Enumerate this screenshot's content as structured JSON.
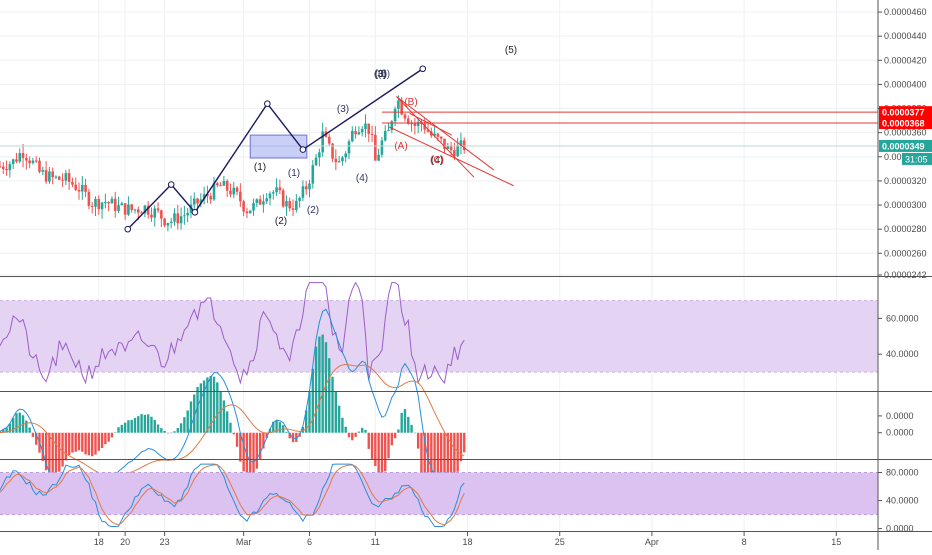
{
  "chart_data": {
    "type": "candlestick-with-indicators",
    "colors": {
      "up": "#26a69a",
      "down": "#ef5350",
      "wave": "#1a1a5e",
      "wave_label": "#333366",
      "correction_label": "#d93434",
      "trend_red": "#e53935",
      "rsi_band": "#e4d3f2",
      "rsi_line": "#9c5fc8",
      "stoch_band": "#dcc2f0",
      "macd_fast": "#2a8fd8",
      "macd_slow": "#e07a47",
      "zone": "#9fa8f0",
      "price_badge_red": "#ff0000",
      "price_badge_teal": "#26a69a",
      "grid": "#eef0f3",
      "axis_text": "#4a4a4a"
    },
    "main": {
      "y_range": [
        2.42e-05,
        4.7e-05
      ],
      "y_ticks": [
        "0.0000460",
        "0.0000440",
        "0.0000420",
        "0.0000400",
        "0.0000380",
        "0.0000360",
        "0.0000340",
        "0.0000320",
        "0.0000300",
        "0.0000280",
        "0.0000260",
        "0.0000242"
      ],
      "y_values": [
        4.6e-05,
        4.4e-05,
        4.2e-05,
        4e-05,
        3.8e-05,
        3.6e-05,
        3.4e-05,
        3.2e-05,
        3e-05,
        2.8e-05,
        2.6e-05,
        2.42e-05
      ],
      "wave_points": [
        {
          "label": "",
          "d": 20.2,
          "p": 2.8e-05
        },
        {
          "label": "(1)",
          "d": 23.5,
          "p": 3.17e-05
        },
        {
          "label": "(2)",
          "d": 25.3,
          "p": 2.94e-05
        },
        {
          "label": "(3)",
          "d": 30.8,
          "p": 3.84e-05
        },
        {
          "label": "(4)",
          "d": 31.1,
          "p": 3.3e-05
        },
        {
          "label": "(5)",
          "d": 42.6,
          "p": 4.13e-05
        },
        {
          "label": "(4)",
          "d": 33.5,
          "p": 3.46e-05
        }
      ],
      "inner_wave": [
        {
          "label": "(1)",
          "d": 26.6,
          "p": 3.13e-05
        },
        {
          "label": "(2)",
          "d": 27.7,
          "p": 3.03e-05
        },
        {
          "label": "(3)",
          "d": 28.9,
          "p": 3.66e-05
        },
        {
          "label": "(4)",
          "d": 29.6,
          "p": 3.32e-05
        }
      ],
      "corrective_labels": [
        {
          "label": "(A)",
          "d": 31.9,
          "p": 3.46e-05
        },
        {
          "label": "(B)",
          "d": 32.4,
          "p": 3.75e-05
        },
        {
          "label": "(C)",
          "d": 33.5,
          "p": 3.37e-05
        }
      ],
      "top_label": "(3)",
      "top_label_alt": "(5)",
      "price_lines": [
        {
          "value": 3.77e-05,
          "label": "0.0000377"
        },
        {
          "value": 3.68e-05,
          "label": "0.0000368"
        }
      ],
      "current_price": {
        "value": 3.49e-05,
        "label": "0.0000349",
        "countdown": "31:05"
      },
      "zone": {
        "d_from": 29.5,
        "d_to": 33.8,
        "p_from": 3.39e-05,
        "p_to": 3.58e-05
      }
    },
    "x_axis": {
      "ticks": [
        "18",
        "20",
        "23",
        "Mar",
        "6",
        "11",
        "18",
        "25",
        "Apr",
        "8",
        "15"
      ],
      "tick_days": [
        18,
        20,
        23,
        29,
        34,
        39,
        46,
        53,
        60,
        67,
        74
      ]
    },
    "rsi": {
      "ylim": [
        20,
        82
      ],
      "band": [
        30,
        70
      ],
      "ticks": [
        "60.0000",
        "40.0000"
      ],
      "tick_values": [
        60,
        40
      ]
    },
    "macd": {
      "ylim": [
        -1.5,
        2.3
      ],
      "ticks": [
        "0.0000",
        "0.0000"
      ],
      "tick_values": [
        1.0,
        0
      ]
    },
    "stoch": {
      "ylim": [
        -2,
        95
      ],
      "band": [
        20,
        80
      ],
      "ticks": [
        "80.0000",
        "40.0000",
        "0.0000"
      ],
      "tick_values": [
        80,
        40,
        0
      ]
    }
  }
}
